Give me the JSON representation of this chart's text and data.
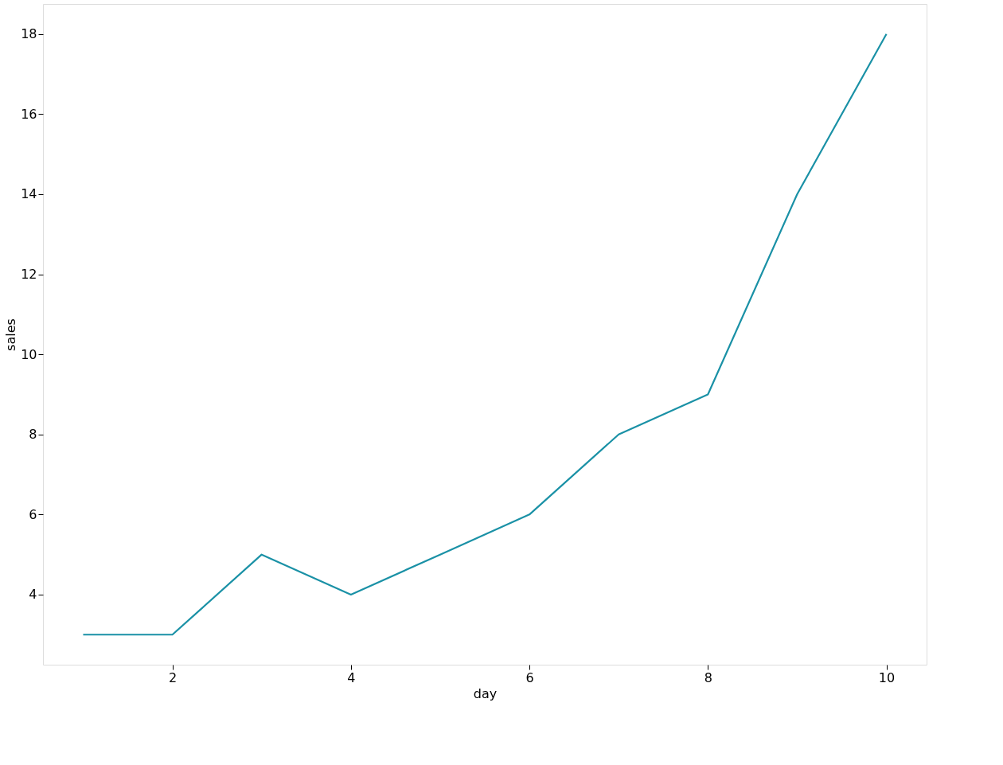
{
  "chart_data": {
    "type": "line",
    "xlabel": "day",
    "ylabel": "sales",
    "x": [
      1,
      2,
      3,
      4,
      5,
      6,
      7,
      8,
      9,
      10
    ],
    "series": [
      {
        "color": "#1a91a6",
        "values": [
          3,
          3,
          5,
          4,
          5,
          6,
          8,
          9,
          14,
          18
        ]
      }
    ],
    "xlim": [
      0.55,
      10.45
    ],
    "ylim": [
      2.25,
      18.75
    ],
    "xticks": [
      2,
      4,
      6,
      8,
      10
    ],
    "yticks": [
      4,
      6,
      8,
      10,
      12,
      14,
      16,
      18
    ],
    "grid": false,
    "legend": false,
    "marker": "none",
    "line_style": "solid"
  }
}
